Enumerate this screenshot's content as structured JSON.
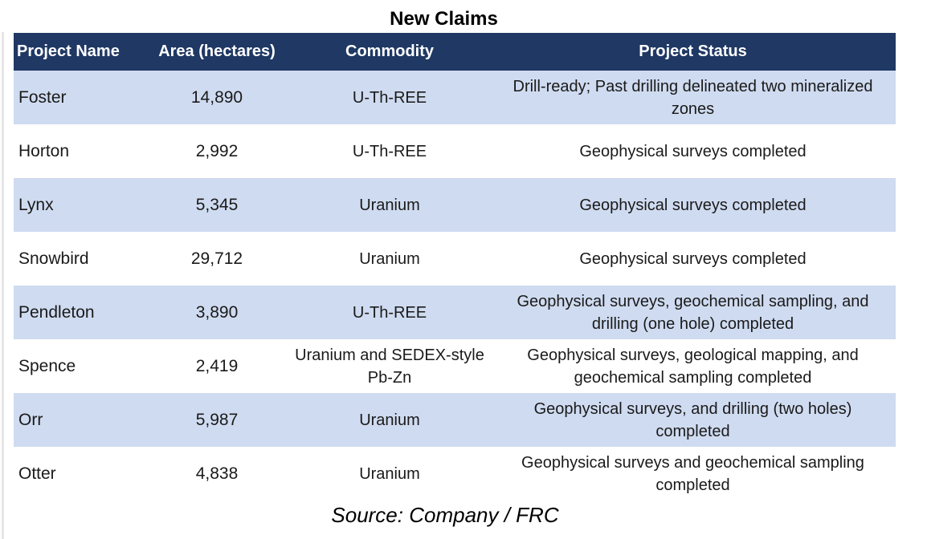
{
  "title": "New Claims",
  "table": {
    "headers": [
      "Project Name",
      "Area (hectares)",
      "Commodity",
      "Project Status"
    ],
    "rows": [
      {
        "name": "Foster",
        "area": "14,890",
        "commodity": "U-Th-REE",
        "status": "Drill-ready; Past drilling delineated two mineralized zones"
      },
      {
        "name": "Horton",
        "area": "2,992",
        "commodity": "U-Th-REE",
        "status": "Geophysical surveys completed"
      },
      {
        "name": "Lynx",
        "area": "5,345",
        "commodity": "Uranium",
        "status": "Geophysical surveys completed"
      },
      {
        "name": "Snowbird",
        "area": "29,712",
        "commodity": "Uranium",
        "status": "Geophysical surveys completed"
      },
      {
        "name": "Pendleton",
        "area": "3,890",
        "commodity": "U-Th-REE",
        "status": "Geophysical surveys, geochemical sampling, and drilling (one hole) completed"
      },
      {
        "name": "Spence",
        "area": "2,419",
        "commodity": "Uranium and SEDEX-style Pb-Zn",
        "status": "Geophysical surveys, geological mapping, and geochemical sampling completed"
      },
      {
        "name": "Orr",
        "area": "5,987",
        "commodity": "Uranium",
        "status": "Geophysical surveys, and drilling (two holes) completed"
      },
      {
        "name": "Otter",
        "area": "4,838",
        "commodity": "Uranium",
        "status": "Geophysical surveys and geochemical sampling completed"
      }
    ]
  },
  "source": "Source: Company / FRC",
  "colors": {
    "header_bg": "#1f3864",
    "header_text": "#ffffff",
    "shaded_row": "#cfdbf0",
    "plain_row": "#ffffff"
  }
}
